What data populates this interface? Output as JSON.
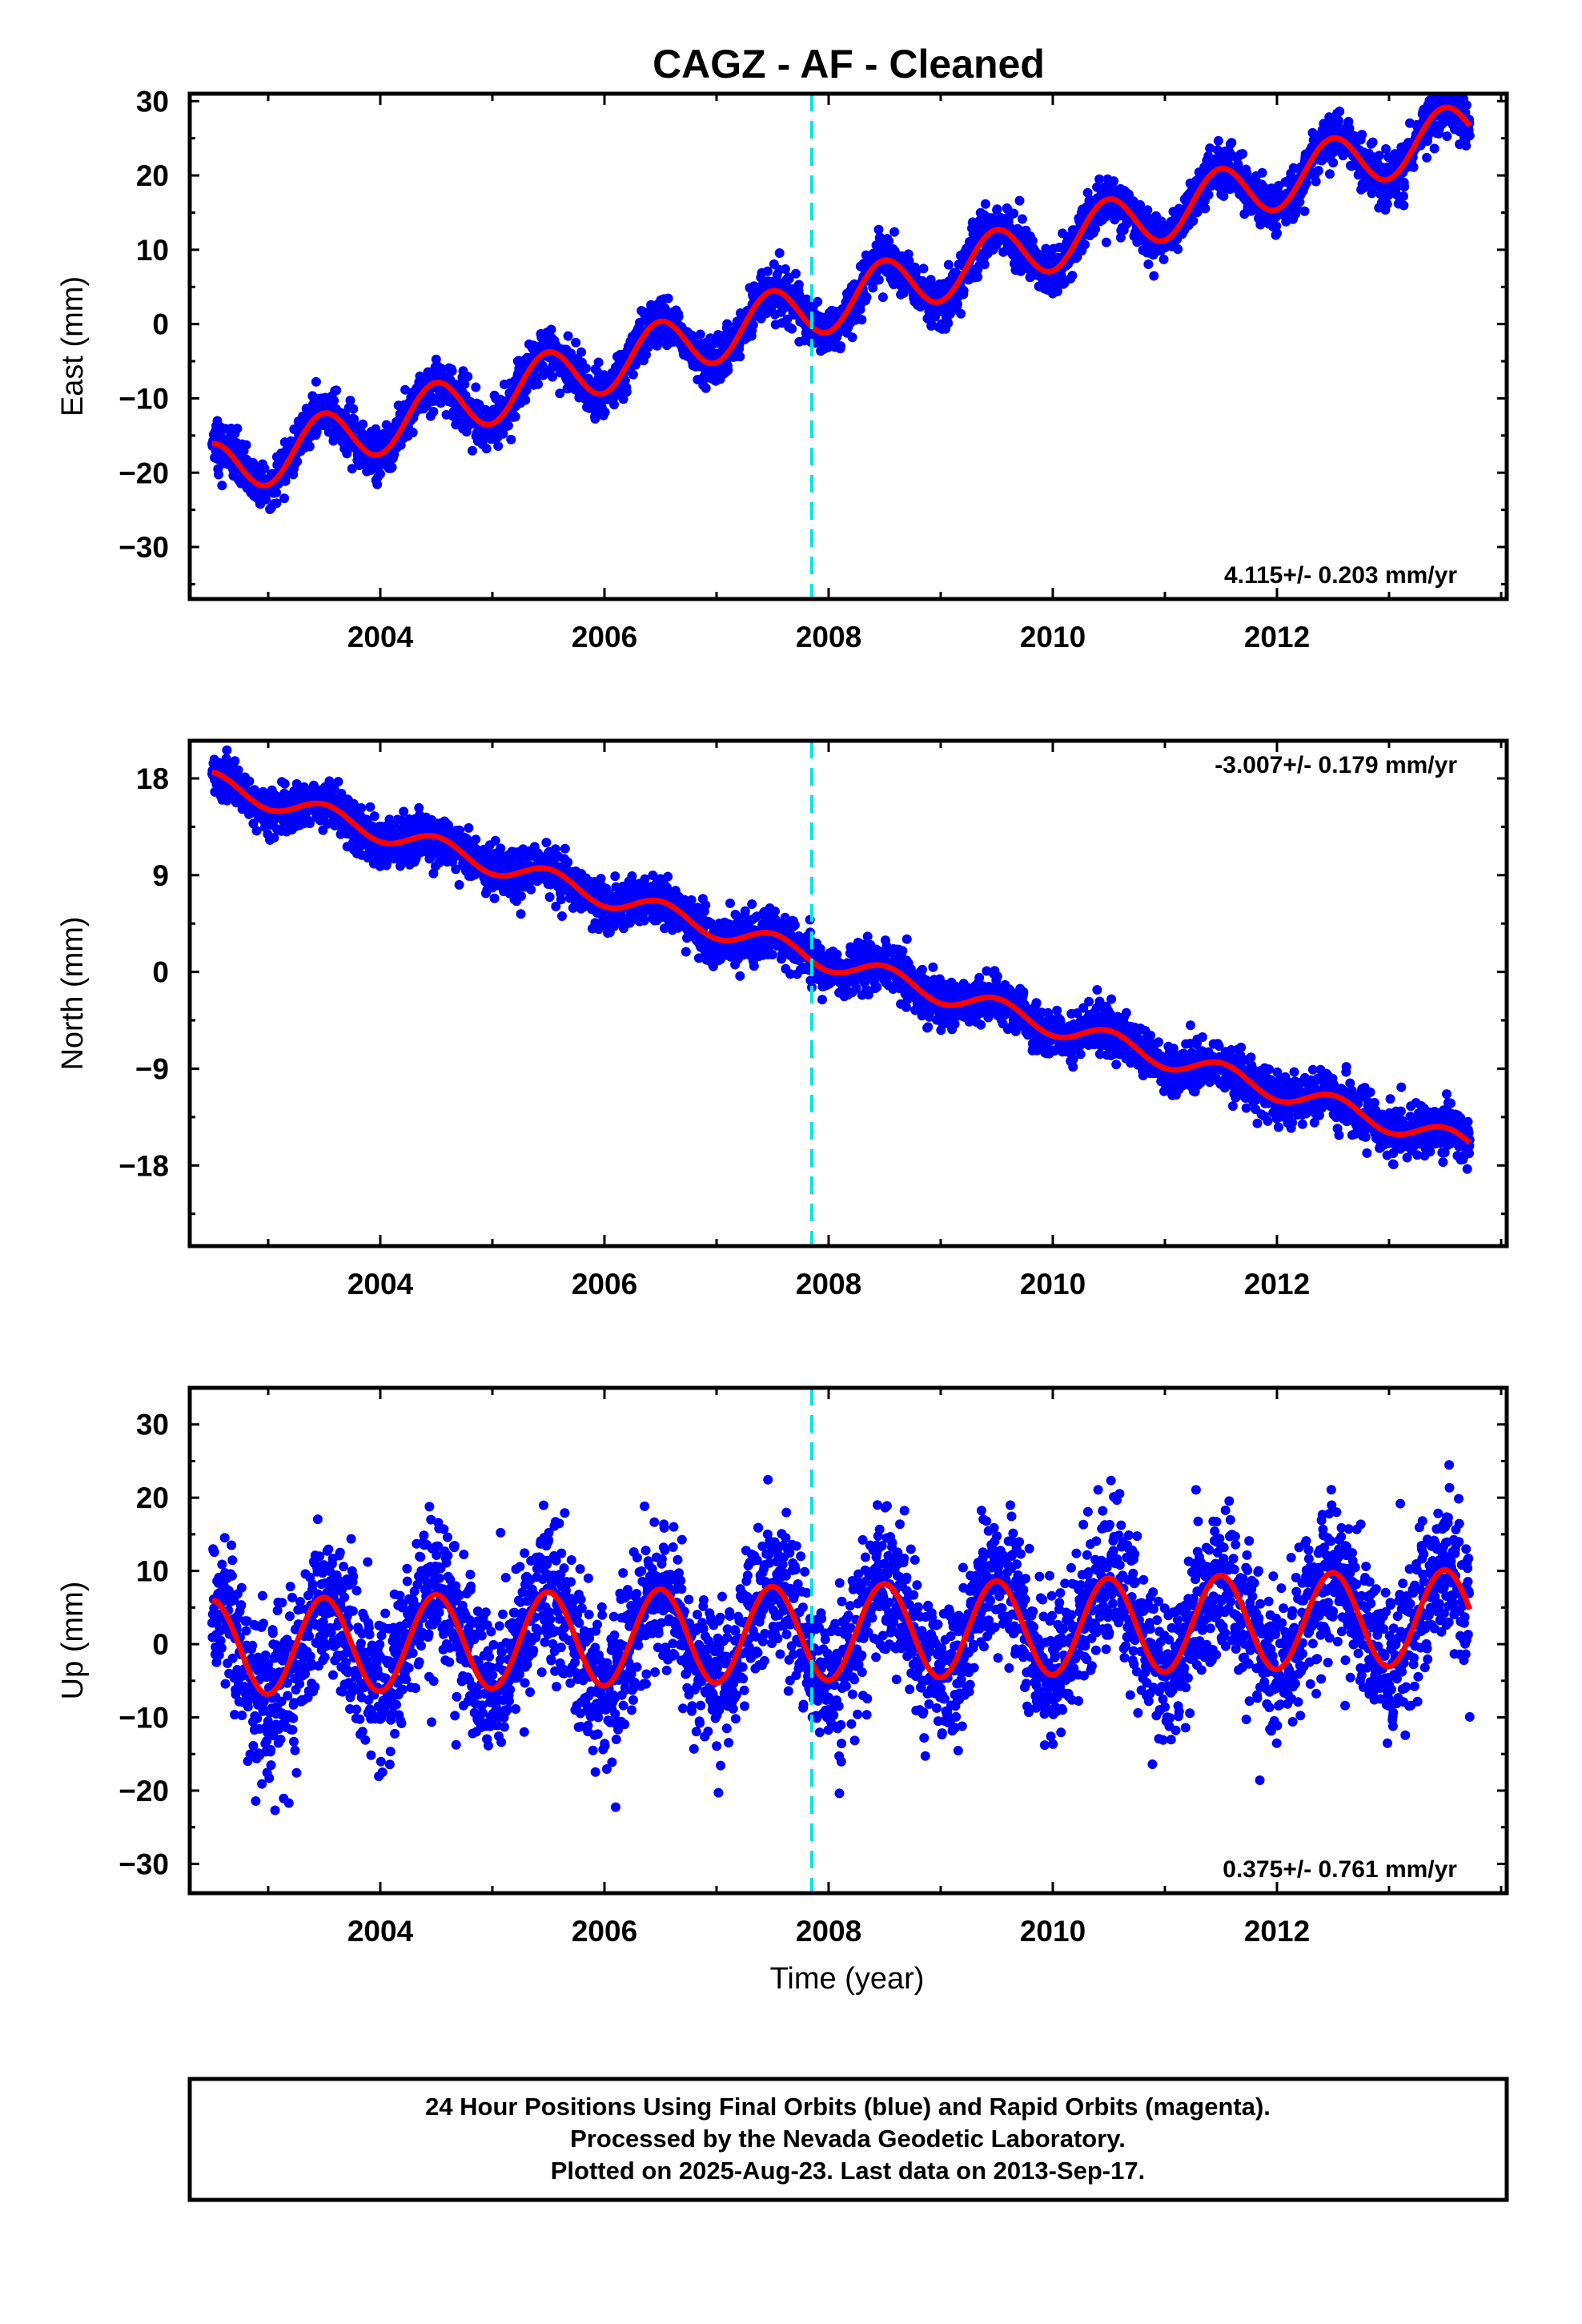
{
  "title": "CAGZ  - AF - Cleaned",
  "xlabel": "Time (year)",
  "footer": {
    "line1": "24 Hour Positions Using Final Orbits (blue) and Rapid Orbits (magenta).",
    "line2": "Processed by the Nevada Geodetic Laboratory.",
    "line3": "Plotted on 2025-Aug-23. Last data on 2013-Sep-17."
  },
  "colors": {
    "points": "#0000ff",
    "fit": "#ff0000",
    "event_line": "#00e5e5",
    "frame": "#000000"
  },
  "chart_data": [
    {
      "type": "scatter",
      "component": "east",
      "ylabel": "East (mm)",
      "rate_label": "4.115+/- 0.203 mm/yr",
      "rate_position": "bottom-right",
      "xlim": [
        2002.3,
        2014.05
      ],
      "ylim": [
        -37,
        31
      ],
      "yticks": [
        -30,
        -20,
        -10,
        0,
        10,
        20,
        30
      ],
      "xticks": [
        2004,
        2006,
        2008,
        2010,
        2012
      ],
      "event_line_x": 2007.85,
      "grid": false,
      "fit": {
        "data_start": 2002.5,
        "data_end": 2013.72,
        "offset": -19.9,
        "rate": 4.115,
        "annual_amplitude": 3.8,
        "annual_phase": 1.65,
        "scatter": 1.6
      }
    },
    {
      "type": "scatter",
      "component": "north",
      "ylabel": "North (mm)",
      "rate_label": "-3.007+/- 0.179 mm/yr",
      "rate_position": "top-right",
      "xlim": [
        2002.3,
        2014.05
      ],
      "ylim": [
        -25.5,
        21.5
      ],
      "yticks": [
        -18,
        -9,
        0,
        9,
        18
      ],
      "xticks": [
        2004,
        2006,
        2008,
        2010,
        2012
      ],
      "event_line_x": 2007.85,
      "grid": false,
      "fit": {
        "data_start": 2002.5,
        "data_end": 2013.72,
        "offset": 17.6,
        "rate": -3.007,
        "annual_amplitude": 1.0,
        "annual_phase": 1.5,
        "scatter": 1.1
      }
    },
    {
      "type": "scatter",
      "component": "up",
      "ylabel": "Up (mm)",
      "rate_label": "0.375+/- 0.761 mm/yr",
      "rate_position": "bottom-right",
      "xlim": [
        2002.3,
        2014.05
      ],
      "ylim": [
        -34,
        35
      ],
      "yticks": [
        -30,
        -20,
        -10,
        0,
        10,
        20,
        30
      ],
      "xticks": [
        2004,
        2006,
        2008,
        2010,
        2012
      ],
      "event_line_x": 2007.85,
      "grid": false,
      "fit": {
        "data_start": 2002.5,
        "data_end": 2013.72,
        "offset": -0.5,
        "rate": 0.375,
        "annual_amplitude": 6.5,
        "annual_phase": 1.6,
        "scatter": 5.0
      }
    }
  ]
}
